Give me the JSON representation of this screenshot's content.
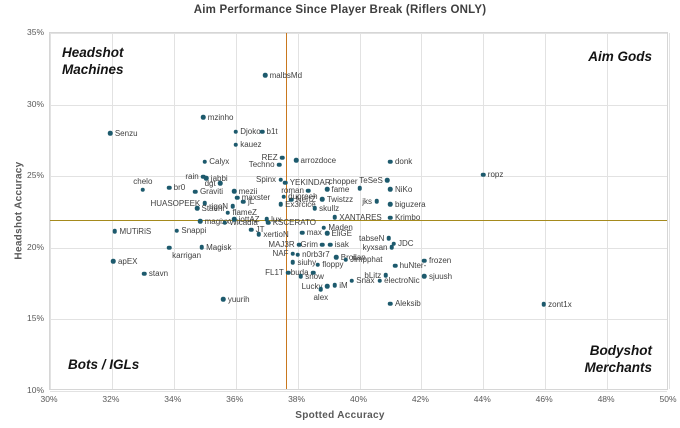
{
  "chart_data": {
    "type": "scatter",
    "title": "Aim Performance Since Player Break (Riflers ONLY)",
    "xlabel": "Spotted Accuracy",
    "ylabel": "Headshot Accuracy",
    "xlim": [
      30,
      50
    ],
    "ylim": [
      10,
      35
    ],
    "x_tick_labels": [
      "30%",
      "32%",
      "34%",
      "36%",
      "38%",
      "40%",
      "42%",
      "44%",
      "46%",
      "48%",
      "50%"
    ],
    "x_tick_values": [
      30,
      32,
      34,
      36,
      38,
      40,
      42,
      44,
      46,
      48,
      50
    ],
    "y_tick_labels": [
      "10%",
      "15%",
      "20%",
      "25%",
      "30%",
      "35%"
    ],
    "y_tick_values": [
      10,
      15,
      20,
      25,
      30,
      35
    ],
    "grid": true,
    "quadrants": {
      "top_left": "Headshot Machines",
      "top_right": "Aim Gods",
      "bottom_left": "Bots / IGLs",
      "bottom_right": "Bodyshot Merchants"
    },
    "crosshair": {
      "x": 37.62,
      "y": 21.95,
      "vertical_color": "#c9781e",
      "horizontal_color": "#a58a1d"
    },
    "style": {
      "dot_color": "#1d5a6d",
      "label_color": "#404040",
      "grid_color": "#e2e2e2",
      "tick_color": "#595959"
    },
    "points": [
      {
        "name": "malbsMd",
        "x": 36.95,
        "y": 32.05,
        "side": "r"
      },
      {
        "name": "mzinho",
        "x": 34.95,
        "y": 29.1,
        "side": "r"
      },
      {
        "name": "Senzu",
        "x": 31.95,
        "y": 28.0,
        "side": "r"
      },
      {
        "name": "Djoko",
        "x": 36.0,
        "y": 28.1,
        "side": "r"
      },
      {
        "name": "b1t",
        "x": 36.85,
        "y": 28.1,
        "side": "r"
      },
      {
        "name": "kauez",
        "x": 36.0,
        "y": 27.2,
        "side": "r"
      },
      {
        "name": "Calyx",
        "x": 35.0,
        "y": 26.0,
        "side": "r"
      },
      {
        "name": "REZ",
        "x": 37.5,
        "y": 26.3,
        "side": "l"
      },
      {
        "name": "Techno",
        "x": 37.4,
        "y": 25.8,
        "side": "l"
      },
      {
        "name": "arrozdoce",
        "x": 37.95,
        "y": 26.1,
        "side": "r"
      },
      {
        "name": "donk",
        "x": 41.0,
        "y": 26.0,
        "side": "r"
      },
      {
        "name": "ropz",
        "x": 44.0,
        "y": 25.1,
        "side": "r"
      },
      {
        "name": "chelo",
        "x": 33.0,
        "y": 24.05,
        "side": "a"
      },
      {
        "name": "rain",
        "x": 34.95,
        "y": 24.95,
        "side": "l"
      },
      {
        "name": "jabbi",
        "x": 35.05,
        "y": 24.85,
        "side": "r"
      },
      {
        "name": "dgt",
        "x": 35.5,
        "y": 24.5,
        "side": "l"
      },
      {
        "name": "br0",
        "x": 33.85,
        "y": 24.2,
        "side": "r"
      },
      {
        "name": "Graviti",
        "x": 34.7,
        "y": 23.9,
        "side": "r"
      },
      {
        "name": "HUASOPEEK",
        "x": 35.0,
        "y": 23.1,
        "side": "l"
      },
      {
        "name": "Spinx",
        "x": 37.45,
        "y": 24.75,
        "side": "l"
      },
      {
        "name": "YEKINDAR",
        "x": 37.6,
        "y": 24.55,
        "side": "r"
      },
      {
        "name": "chopper",
        "x": 40.0,
        "y": 24.15,
        "side": "lu"
      },
      {
        "name": "TeSeS",
        "x": 40.9,
        "y": 24.7,
        "side": "l"
      },
      {
        "name": "fame",
        "x": 38.95,
        "y": 24.1,
        "side": "r"
      },
      {
        "name": "roman",
        "x": 38.35,
        "y": 24.0,
        "side": "l"
      },
      {
        "name": "mezii",
        "x": 35.95,
        "y": 23.95,
        "side": "r"
      },
      {
        "name": "maxster",
        "x": 36.05,
        "y": 23.5,
        "side": "r"
      },
      {
        "name": "jL",
        "x": 36.25,
        "y": 23.2,
        "side": "r"
      },
      {
        "name": "rigoN",
        "x": 35.9,
        "y": 22.9,
        "side": "l"
      },
      {
        "name": "Staehr",
        "x": 34.75,
        "y": 22.75,
        "side": "r"
      },
      {
        "name": "flameZ",
        "x": 35.75,
        "y": 22.45,
        "side": "r"
      },
      {
        "name": "NertZ",
        "x": 37.8,
        "y": 23.35,
        "side": "r"
      },
      {
        "name": "Ex3rcice",
        "x": 37.45,
        "y": 23.05,
        "side": "r"
      },
      {
        "name": "dupreeh",
        "x": 37.55,
        "y": 23.55,
        "side": "r"
      },
      {
        "name": "Twistzz",
        "x": 38.8,
        "y": 23.4,
        "side": "r"
      },
      {
        "name": "skullz",
        "x": 38.55,
        "y": 22.75,
        "side": "r"
      },
      {
        "name": "jks",
        "x": 40.55,
        "y": 23.25,
        "side": "l"
      },
      {
        "name": "biguzera",
        "x": 41.0,
        "y": 23.05,
        "side": "r"
      },
      {
        "name": "XANTARES",
        "x": 39.2,
        "y": 22.15,
        "side": "r"
      },
      {
        "name": "Krimbo",
        "x": 41.0,
        "y": 22.1,
        "side": "r"
      },
      {
        "name": "magixx",
        "x": 34.85,
        "y": 21.85,
        "side": "r"
      },
      {
        "name": "Wicadia",
        "x": 35.65,
        "y": 21.75,
        "side": "r"
      },
      {
        "name": "jottAZ",
        "x": 35.95,
        "y": 22.0,
        "side": "r"
      },
      {
        "name": "lux",
        "x": 37.0,
        "y": 22.0,
        "side": "r"
      },
      {
        "name": "KSCERATO",
        "x": 37.05,
        "y": 21.75,
        "side": "r"
      },
      {
        "name": "Maden",
        "x": 38.85,
        "y": 21.4,
        "side": "r"
      },
      {
        "name": "EliGE",
        "x": 38.95,
        "y": 21.0,
        "side": "r"
      },
      {
        "name": "max",
        "x": 38.15,
        "y": 21.05,
        "side": "r"
      },
      {
        "name": "JT",
        "x": 36.5,
        "y": 21.25,
        "side": "r"
      },
      {
        "name": "xertioN",
        "x": 36.75,
        "y": 20.95,
        "side": "r"
      },
      {
        "name": "tabseN",
        "x": 40.95,
        "y": 20.65,
        "side": "l"
      },
      {
        "name": "kyxsan",
        "x": 41.05,
        "y": 20.05,
        "side": "l"
      },
      {
        "name": "JDC",
        "x": 41.1,
        "y": 20.3,
        "side": "r"
      },
      {
        "name": "NiKo",
        "x": 41.0,
        "y": 24.1,
        "side": "r"
      },
      {
        "name": "MUTiRiS",
        "x": 32.1,
        "y": 21.15,
        "side": "r"
      },
      {
        "name": "Snappi",
        "x": 34.1,
        "y": 21.2,
        "side": "r"
      },
      {
        "name": "Magisk",
        "x": 34.9,
        "y": 20.05,
        "side": "r"
      },
      {
        "name": "karrigan",
        "x": 33.85,
        "y": 20.0,
        "side": "br"
      },
      {
        "name": "MAJ3R",
        "x": 38.05,
        "y": 20.2,
        "side": "l"
      },
      {
        "name": "Grim",
        "x": 38.8,
        "y": 20.2,
        "side": "l"
      },
      {
        "name": "isak",
        "x": 39.05,
        "y": 20.2,
        "side": "r"
      },
      {
        "name": "NAF",
        "x": 37.85,
        "y": 19.6,
        "side": "l"
      },
      {
        "name": "n0rb3r7",
        "x": 38.0,
        "y": 19.5,
        "side": "r"
      },
      {
        "name": "Brollan",
        "x": 39.25,
        "y": 19.35,
        "side": "r"
      },
      {
        "name": "Jimpphat",
        "x": 39.55,
        "y": 19.15,
        "side": "r"
      },
      {
        "name": "huNter-",
        "x": 41.15,
        "y": 18.75,
        "side": "r"
      },
      {
        "name": "frozen",
        "x": 42.1,
        "y": 19.1,
        "side": "r"
      },
      {
        "name": "siuhy",
        "x": 37.85,
        "y": 19.0,
        "side": "r"
      },
      {
        "name": "floppy",
        "x": 38.65,
        "y": 18.8,
        "side": "r"
      },
      {
        "name": "FL1T",
        "x": 37.7,
        "y": 18.25,
        "side": "l"
      },
      {
        "name": "buda",
        "x": 38.5,
        "y": 18.25,
        "side": "l"
      },
      {
        "name": "snow",
        "x": 38.1,
        "y": 18.0,
        "side": "r"
      },
      {
        "name": "bLitz",
        "x": 40.85,
        "y": 18.1,
        "side": "l"
      },
      {
        "name": "Snax",
        "x": 39.75,
        "y": 17.7,
        "side": "r"
      },
      {
        "name": "electroNic",
        "x": 40.65,
        "y": 17.7,
        "side": "r"
      },
      {
        "name": "sjuush",
        "x": 42.1,
        "y": 18.0,
        "side": "r"
      },
      {
        "name": "Lucky",
        "x": 38.95,
        "y": 17.3,
        "side": "l"
      },
      {
        "name": "iM",
        "x": 39.2,
        "y": 17.4,
        "side": "r"
      },
      {
        "name": "alex",
        "x": 38.75,
        "y": 17.1,
        "side": "b"
      },
      {
        "name": "Aleksib",
        "x": 41.0,
        "y": 16.1,
        "side": "r"
      },
      {
        "name": "zont1x",
        "x": 45.95,
        "y": 16.05,
        "side": "r"
      },
      {
        "name": "yuurih",
        "x": 35.6,
        "y": 16.4,
        "side": "r"
      },
      {
        "name": "apEX",
        "x": 32.05,
        "y": 19.05,
        "side": "r"
      },
      {
        "name": "stavn",
        "x": 33.05,
        "y": 18.2,
        "side": "r"
      }
    ]
  }
}
